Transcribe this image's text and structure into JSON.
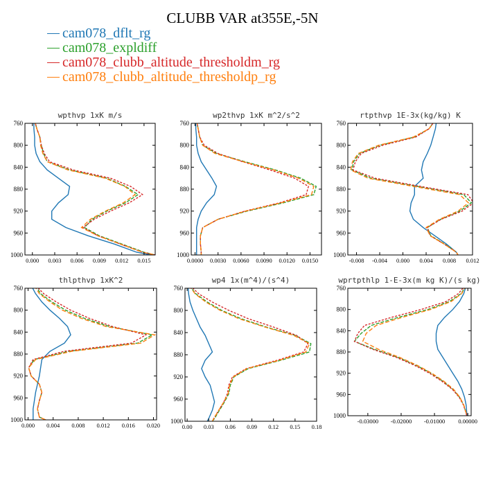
{
  "title": "CLUBB VAR at355E,-5N",
  "legend": [
    {
      "name": "cam078_dflt_rg",
      "color": "#1f77b4",
      "dash": false
    },
    {
      "name": "cam078_expldiff",
      "color": "#2ca02c",
      "dash": true
    },
    {
      "name": "cam078_clubb_altitude_thresholdm_rg",
      "color": "#d62728",
      "dash": true
    },
    {
      "name": "cam078_clubb_altitude_thresholdp_rg",
      "color": "#ff7f0e",
      "dash": true
    }
  ],
  "chart_data": [
    {
      "type": "line",
      "title": "wpthvp   1xK m/s",
      "xlim": [
        -0.001,
        0.0165
      ],
      "ylim": [
        760,
        1000
      ],
      "y_reversed": true,
      "xticks": [
        "0.000",
        "0.003",
        "0.006",
        "0.009",
        "0.012",
        "0.015"
      ],
      "xtick_values": [
        0,
        0.003,
        0.006,
        0.009,
        0.012,
        0.015
      ],
      "yticks": [
        760,
        800,
        840,
        880,
        920,
        960,
        1000
      ],
      "y": [
        755,
        770,
        785,
        800,
        815,
        830,
        845,
        860,
        875,
        890,
        905,
        920,
        935,
        950,
        965,
        980,
        995,
        1000
      ],
      "series": [
        {
          "name": "cam078_dflt_rg",
          "x": [
            0.0002,
            0.0002,
            0.0003,
            0.0003,
            0.0005,
            0.001,
            0.002,
            0.0035,
            0.005,
            0.0048,
            0.0035,
            0.0026,
            0.0026,
            0.0045,
            0.0075,
            0.011,
            0.014,
            0.016
          ]
        },
        {
          "name": "cam078_expldiff",
          "x": [
            0.0003,
            0.0006,
            0.001,
            0.0012,
            0.0015,
            0.002,
            0.005,
            0.01,
            0.0125,
            0.0142,
            0.0125,
            0.01,
            0.008,
            0.007,
            0.009,
            0.012,
            0.015,
            0.0165
          ]
        },
        {
          "name": "cam078_clubb_altitude_thresholdm_rg",
          "x": [
            0.0003,
            0.0006,
            0.001,
            0.0012,
            0.0016,
            0.0023,
            0.0055,
            0.0105,
            0.0132,
            0.0148,
            0.013,
            0.0105,
            0.0083,
            0.0068,
            0.0088,
            0.0118,
            0.0148,
            0.0165
          ]
        },
        {
          "name": "cam078_clubb_altitude_thresholdp_rg",
          "x": [
            0.0003,
            0.0006,
            0.001,
            0.0011,
            0.0014,
            0.002,
            0.0048,
            0.0098,
            0.0124,
            0.0138,
            0.0122,
            0.0098,
            0.0078,
            0.0066,
            0.0088,
            0.0118,
            0.0148,
            0.0165
          ]
        }
      ]
    },
    {
      "type": "line",
      "title": "wp2thvp   1xK m^2/s^2",
      "xlim": [
        -0.0005,
        0.0165
      ],
      "ylim": [
        760,
        1000
      ],
      "y_reversed": true,
      "xticks": [
        "0.0000",
        "0.0030",
        "0.0060",
        "0.0090",
        "0.0120",
        "0.0150"
      ],
      "xtick_values": [
        0,
        0.003,
        0.006,
        0.009,
        0.012,
        0.015
      ],
      "yticks": [
        760,
        800,
        840,
        880,
        920,
        960,
        1000
      ],
      "y": [
        755,
        770,
        785,
        800,
        815,
        830,
        845,
        860,
        875,
        890,
        905,
        920,
        935,
        950,
        965,
        980,
        995,
        1000
      ],
      "series": [
        {
          "name": "cam078_dflt_rg",
          "x": [
            0.0001,
            0.0001,
            0.0002,
            0.0002,
            0.0004,
            0.0008,
            0.0015,
            0.0022,
            0.0028,
            0.0025,
            0.0015,
            0.0008,
            0.0004,
            0.0002,
            0.0002,
            0.0002,
            0.0002,
            0.0002
          ]
        },
        {
          "name": "cam078_expldiff",
          "x": [
            0.0002,
            0.0004,
            0.0006,
            0.001,
            0.0028,
            0.0065,
            0.0105,
            0.0138,
            0.0158,
            0.0155,
            0.0115,
            0.0068,
            0.003,
            0.001,
            0.0007,
            0.0007,
            0.0008,
            0.0008
          ]
        },
        {
          "name": "cam078_clubb_altitude_thresholdm_rg",
          "x": [
            0.0002,
            0.0004,
            0.0006,
            0.0012,
            0.003,
            0.0062,
            0.0098,
            0.013,
            0.0148,
            0.0145,
            0.011,
            0.0065,
            0.003,
            0.001,
            0.0007,
            0.0007,
            0.0008,
            0.0008
          ]
        },
        {
          "name": "cam078_clubb_altitude_thresholdp_rg",
          "x": [
            0.0002,
            0.0004,
            0.0006,
            0.001,
            0.0026,
            0.0063,
            0.0103,
            0.0135,
            0.0155,
            0.0152,
            0.0112,
            0.0066,
            0.003,
            0.001,
            0.0007,
            0.0007,
            0.0008,
            0.0008
          ]
        }
      ]
    },
    {
      "type": "line",
      "title": "rtpthvp   1E-3x(kg/kg) K",
      "xlim": [
        -0.0095,
        0.012
      ],
      "ylim": [
        760,
        1000
      ],
      "y_reversed": true,
      "xticks": [
        "-0.008",
        "-0.004",
        "0.000",
        "0.004",
        "0.008",
        "0.012"
      ],
      "xtick_values": [
        -0.008,
        -0.004,
        0,
        0.004,
        0.008,
        0.012
      ],
      "yticks": [
        760,
        800,
        840,
        880,
        920,
        960,
        1000
      ],
      "y": [
        755,
        770,
        785,
        800,
        815,
        830,
        845,
        860,
        875,
        890,
        905,
        920,
        935,
        950,
        965,
        980,
        995,
        1000
      ],
      "series": [
        {
          "name": "cam078_dflt_rg",
          "x": [
            0.0058,
            0.0056,
            0.0052,
            0.0048,
            0.0042,
            0.0035,
            0.0032,
            0.0035,
            0.002,
            0.002,
            0.0014,
            0.0012,
            0.0018,
            0.0035,
            0.0055,
            0.0075,
            0.0092,
            0.0095
          ]
        },
        {
          "name": "cam078_expldiff",
          "x": [
            0.0055,
            0.0045,
            0.002,
            -0.004,
            -0.0075,
            -0.0085,
            -0.0088,
            -0.0055,
            0.0025,
            0.0105,
            0.0118,
            0.0098,
            0.0065,
            0.0042,
            0.0048,
            0.0072,
            0.0092,
            0.0095
          ]
        },
        {
          "name": "cam078_clubb_altitude_thresholdm_rg",
          "x": [
            0.0055,
            0.0045,
            0.0022,
            -0.0035,
            -0.0072,
            -0.0082,
            -0.0086,
            -0.0048,
            0.003,
            0.0112,
            0.0122,
            0.0102,
            0.0066,
            0.0042,
            0.0047,
            0.0071,
            0.0092,
            0.0095
          ]
        },
        {
          "name": "cam078_clubb_altitude_thresholdp_rg",
          "x": [
            0.0055,
            0.0045,
            0.0018,
            -0.0042,
            -0.0077,
            -0.0087,
            -0.009,
            -0.006,
            0.0018,
            0.0098,
            0.0113,
            0.0095,
            0.0063,
            0.004,
            0.0047,
            0.0071,
            0.0092,
            0.0095
          ]
        }
      ]
    },
    {
      "type": "line",
      "title": "thlpthvp   1xK^2",
      "xlim": [
        -0.0005,
        0.0205
      ],
      "ylim": [
        760,
        1000
      ],
      "y_reversed": true,
      "xticks": [
        "0.000",
        "0.004",
        "0.008",
        "0.012",
        "0.016",
        "0.020"
      ],
      "xtick_values": [
        0,
        0.004,
        0.008,
        0.012,
        0.016,
        0.02
      ],
      "yticks": [
        760,
        800,
        840,
        880,
        920,
        960,
        1000
      ],
      "y": [
        755,
        770,
        785,
        800,
        815,
        830,
        845,
        860,
        875,
        890,
        905,
        920,
        935,
        950,
        965,
        980,
        995,
        1000
      ],
      "series": [
        {
          "name": "cam078_dflt_rg",
          "x": [
            0.0005,
            0.0012,
            0.0022,
            0.0035,
            0.005,
            0.0063,
            0.0068,
            0.0058,
            0.0035,
            0.0022,
            0.002,
            0.0018,
            0.0015,
            0.0012,
            0.001,
            0.0008,
            0.0008,
            0.0008
          ]
        },
        {
          "name": "cam078_expldiff",
          "x": [
            0.0012,
            0.002,
            0.0038,
            0.006,
            0.009,
            0.013,
            0.0198,
            0.0175,
            0.0065,
            0.001,
            0.0001,
            0.0005,
            0.0018,
            0.0022,
            0.0018,
            0.0015,
            0.0018,
            0.0028
          ]
        },
        {
          "name": "cam078_clubb_altitude_thresholdm_rg",
          "x": [
            0.0012,
            0.0025,
            0.0045,
            0.0068,
            0.0098,
            0.0135,
            0.0188,
            0.0165,
            0.0058,
            0.0008,
            0.0001,
            0.0005,
            0.0018,
            0.0022,
            0.0018,
            0.0015,
            0.0018,
            0.0028
          ]
        },
        {
          "name": "cam078_clubb_altitude_thresholdp_rg",
          "x": [
            0.001,
            0.0018,
            0.0035,
            0.0055,
            0.0085,
            0.0125,
            0.0202,
            0.018,
            0.007,
            0.0012,
            0.0001,
            0.0005,
            0.0018,
            0.0022,
            0.0018,
            0.0015,
            0.0018,
            0.0028
          ]
        }
      ]
    },
    {
      "type": "line",
      "title": "wp4   1x(m^4)/(s^4)",
      "xlim": [
        -0.003,
        0.18
      ],
      "ylim": [
        760,
        1000
      ],
      "y_reversed": true,
      "xticks": [
        "0.00",
        "0.03",
        "0.06",
        "0.09",
        "0.12",
        "0.15",
        "0.18"
      ],
      "xtick_values": [
        0,
        0.03,
        0.06,
        0.09,
        0.12,
        0.15,
        0.18
      ],
      "yticks": [
        760,
        800,
        840,
        880,
        920,
        960,
        1000
      ],
      "y": [
        755,
        770,
        785,
        800,
        815,
        830,
        845,
        860,
        875,
        890,
        905,
        920,
        935,
        950,
        965,
        980,
        995,
        1000
      ],
      "series": [
        {
          "name": "cam078_dflt_rg",
          "x": [
            0.001,
            0.002,
            0.004,
            0.008,
            0.013,
            0.018,
            0.025,
            0.03,
            0.035,
            0.025,
            0.02,
            0.025,
            0.032,
            0.035,
            0.038,
            0.035,
            0.03,
            0.028
          ]
        },
        {
          "name": "cam078_expldiff",
          "x": [
            0.003,
            0.012,
            0.028,
            0.048,
            0.075,
            0.11,
            0.15,
            0.172,
            0.17,
            0.13,
            0.085,
            0.065,
            0.06,
            0.058,
            0.052,
            0.045,
            0.038,
            0.035
          ]
        },
        {
          "name": "cam078_clubb_altitude_thresholdm_rg",
          "x": [
            0.004,
            0.016,
            0.035,
            0.058,
            0.085,
            0.12,
            0.152,
            0.168,
            0.162,
            0.125,
            0.082,
            0.063,
            0.058,
            0.056,
            0.051,
            0.044,
            0.037,
            0.035
          ]
        },
        {
          "name": "cam078_clubb_altitude_thresholdp_rg",
          "x": [
            0.003,
            0.011,
            0.026,
            0.046,
            0.072,
            0.108,
            0.148,
            0.17,
            0.165,
            0.128,
            0.083,
            0.064,
            0.059,
            0.057,
            0.051,
            0.044,
            0.037,
            0.035
          ]
        }
      ]
    },
    {
      "type": "line",
      "title": "wprtpthlp   1-E-3x(m kg K)/(s kg)",
      "xlim": [
        -0.036,
        0.001
      ],
      "ylim": [
        760,
        1000
      ],
      "y_reversed": true,
      "xticks": [
        "-0.03000",
        "-0.02000",
        "-0.01000",
        "0.00000"
      ],
      "xtick_values": [
        -0.03,
        -0.02,
        -0.01,
        0
      ],
      "yticks": [
        760,
        800,
        840,
        880,
        920,
        960,
        1000
      ],
      "y": [
        755,
        770,
        785,
        800,
        815,
        830,
        845,
        860,
        875,
        890,
        905,
        920,
        935,
        950,
        965,
        980,
        995,
        1000
      ],
      "series": [
        {
          "name": "cam078_dflt_rg",
          "x": [
            -0.0005,
            -0.0012,
            -0.0025,
            -0.0045,
            -0.007,
            -0.009,
            -0.0095,
            -0.0095,
            -0.009,
            -0.0075,
            -0.006,
            -0.0045,
            -0.003,
            -0.0018,
            -0.001,
            -0.0005,
            -0.0003,
            -0.0002
          ]
        },
        {
          "name": "cam078_expldiff",
          "x": [
            -0.0005,
            -0.002,
            -0.0055,
            -0.012,
            -0.021,
            -0.029,
            -0.032,
            -0.034,
            -0.028,
            -0.021,
            -0.0155,
            -0.011,
            -0.0075,
            -0.0045,
            -0.0025,
            -0.0012,
            -0.0005,
            -0.0003
          ]
        },
        {
          "name": "cam078_clubb_altitude_thresholdm_rg",
          "x": [
            -0.0008,
            -0.0028,
            -0.0065,
            -0.014,
            -0.023,
            -0.031,
            -0.033,
            -0.034,
            -0.0285,
            -0.0215,
            -0.016,
            -0.0115,
            -0.0078,
            -0.0047,
            -0.0026,
            -0.0013,
            -0.0005,
            -0.0003
          ]
        },
        {
          "name": "cam078_clubb_altitude_thresholdp_rg",
          "x": [
            -0.0005,
            -0.0018,
            -0.005,
            -0.0112,
            -0.0198,
            -0.0275,
            -0.0305,
            -0.0315,
            -0.0268,
            -0.0205,
            -0.0152,
            -0.0108,
            -0.0072,
            -0.0043,
            -0.0024,
            -0.0012,
            -0.0005,
            -0.0003
          ]
        }
      ]
    }
  ]
}
